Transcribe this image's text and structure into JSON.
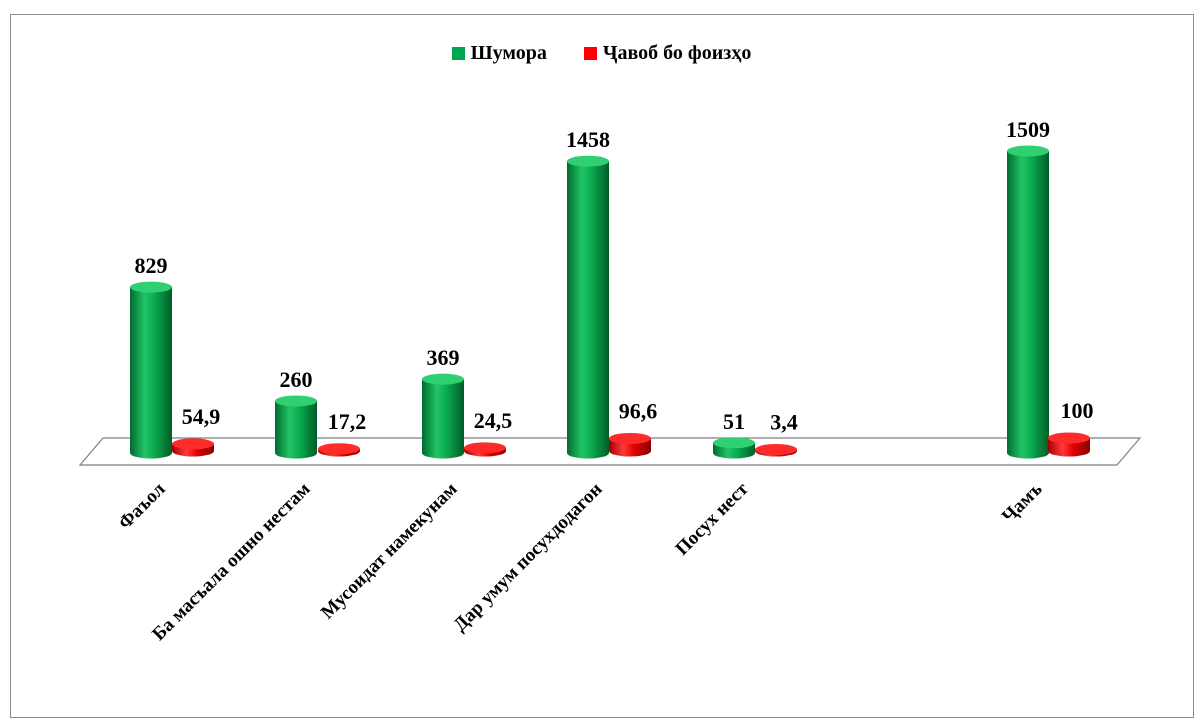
{
  "chart_data": {
    "type": "bar",
    "style": "3d-cylinder",
    "categories": [
      "Фаъол",
      "Ба масъала ошно нестам",
      "Мусоидат намекунам",
      "Дар умум посухдодагон",
      "Посух нест",
      "Ҷамъ"
    ],
    "series": [
      {
        "name": "Шумора",
        "color": "#00a651",
        "values": [
          829,
          260,
          369,
          1458,
          51,
          1509
        ],
        "labels": [
          "829",
          "260",
          "369",
          "1458",
          "51",
          "1509"
        ]
      },
      {
        "name": "Ҷавоб бо фоизҳо",
        "color": "#ff0000",
        "values": [
          54.9,
          17.2,
          24.5,
          96.6,
          3.4,
          100
        ],
        "labels": [
          "54,9",
          "17,2",
          "24,5",
          "96,6",
          "3,4",
          "100"
        ]
      }
    ],
    "legend": "top",
    "grid": false
  },
  "legend_labels": [
    "Шумора",
    "Ҷавоб бо фоизҳо"
  ]
}
